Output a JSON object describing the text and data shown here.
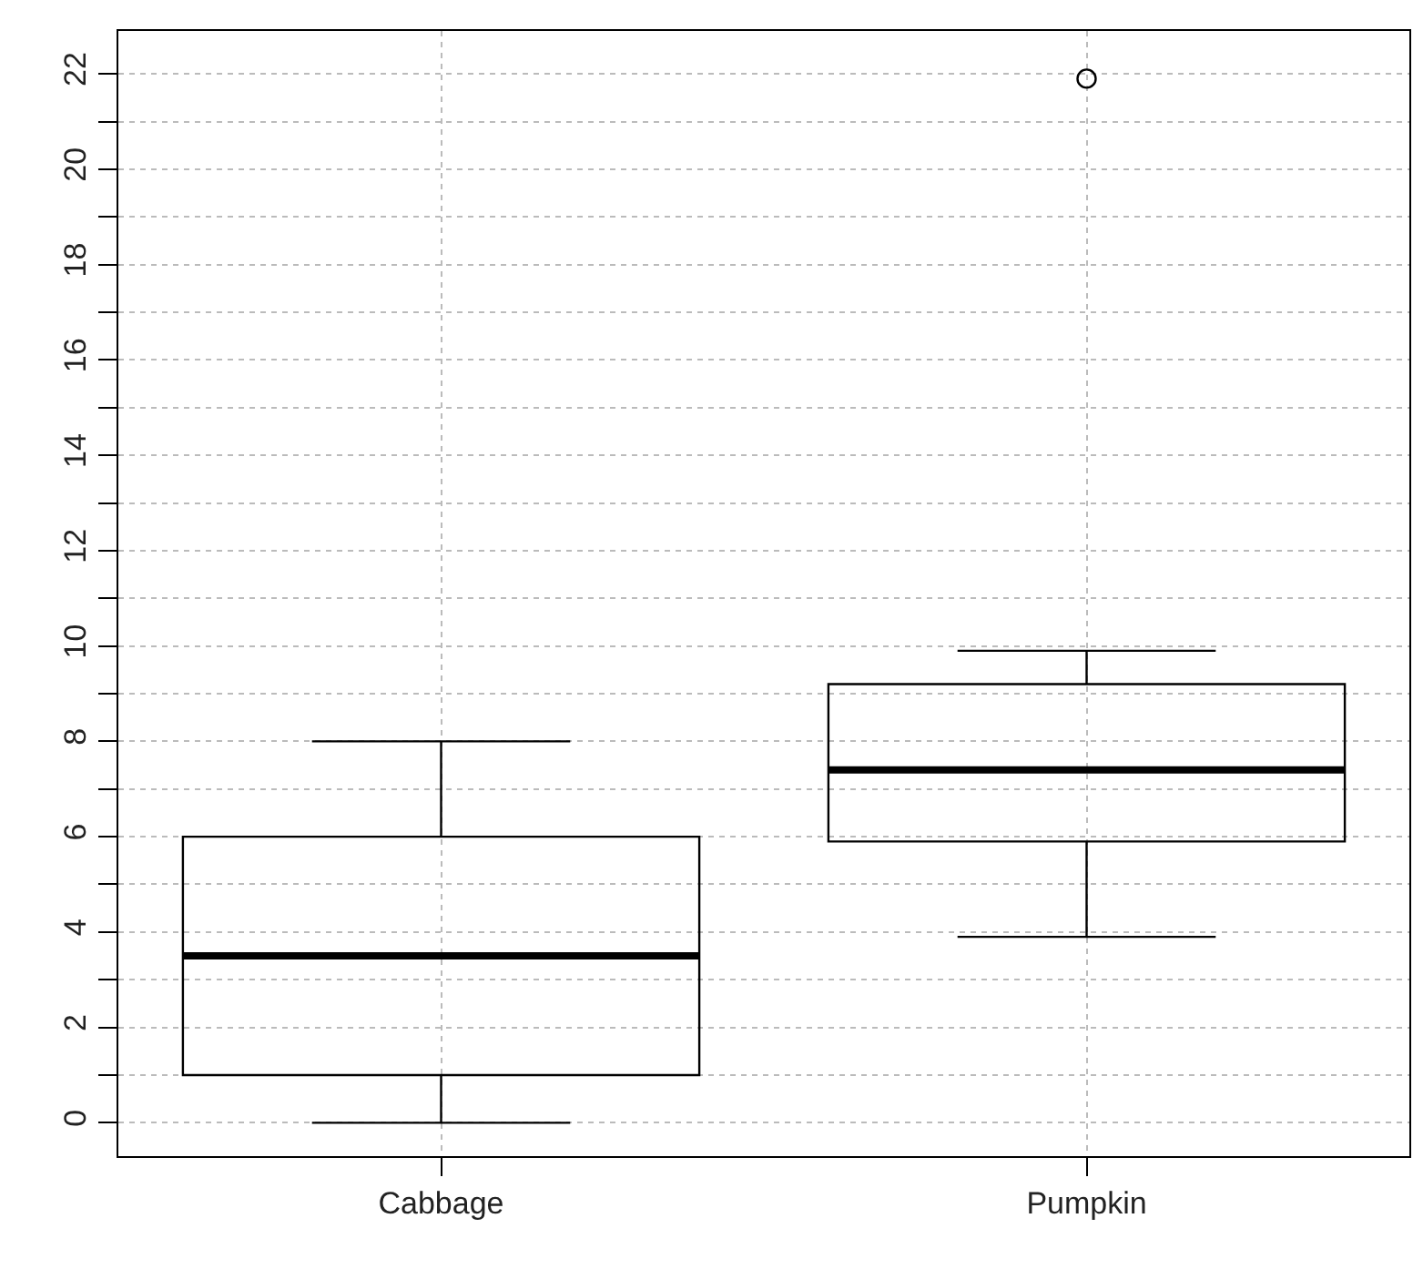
{
  "chart_data": {
    "type": "box",
    "categories": [
      "Cabbage",
      "Pumpkin"
    ],
    "color": "#000000",
    "boxes": [
      {
        "low": 0,
        "q1": 1,
        "median": 3.5,
        "q3": 6,
        "high": 8
      },
      {
        "low": 3.9,
        "q1": 5.9,
        "median": 7.4,
        "q3": 9.2,
        "high": 9.9,
        "outliers": [
          21.9
        ]
      }
    ],
    "ylim": [
      -0.7,
      22.9
    ],
    "yticks": [
      0,
      {
        "value": 1,
        "label": null
      },
      2,
      {
        "value": 3,
        "label": null
      },
      4,
      {
        "value": 5,
        "label": null
      },
      6,
      {
        "value": 7,
        "label": null
      },
      8,
      {
        "value": 9,
        "label": null
      },
      10,
      {
        "value": 11,
        "label": null
      },
      12,
      {
        "value": 13,
        "label": null
      },
      14,
      {
        "value": 15,
        "label": null
      },
      16,
      {
        "value": 17,
        "label": null
      },
      18,
      {
        "value": 19,
        "label": null
      },
      20,
      {
        "value": 21,
        "label": null
      },
      22
    ],
    "grid": true
  }
}
